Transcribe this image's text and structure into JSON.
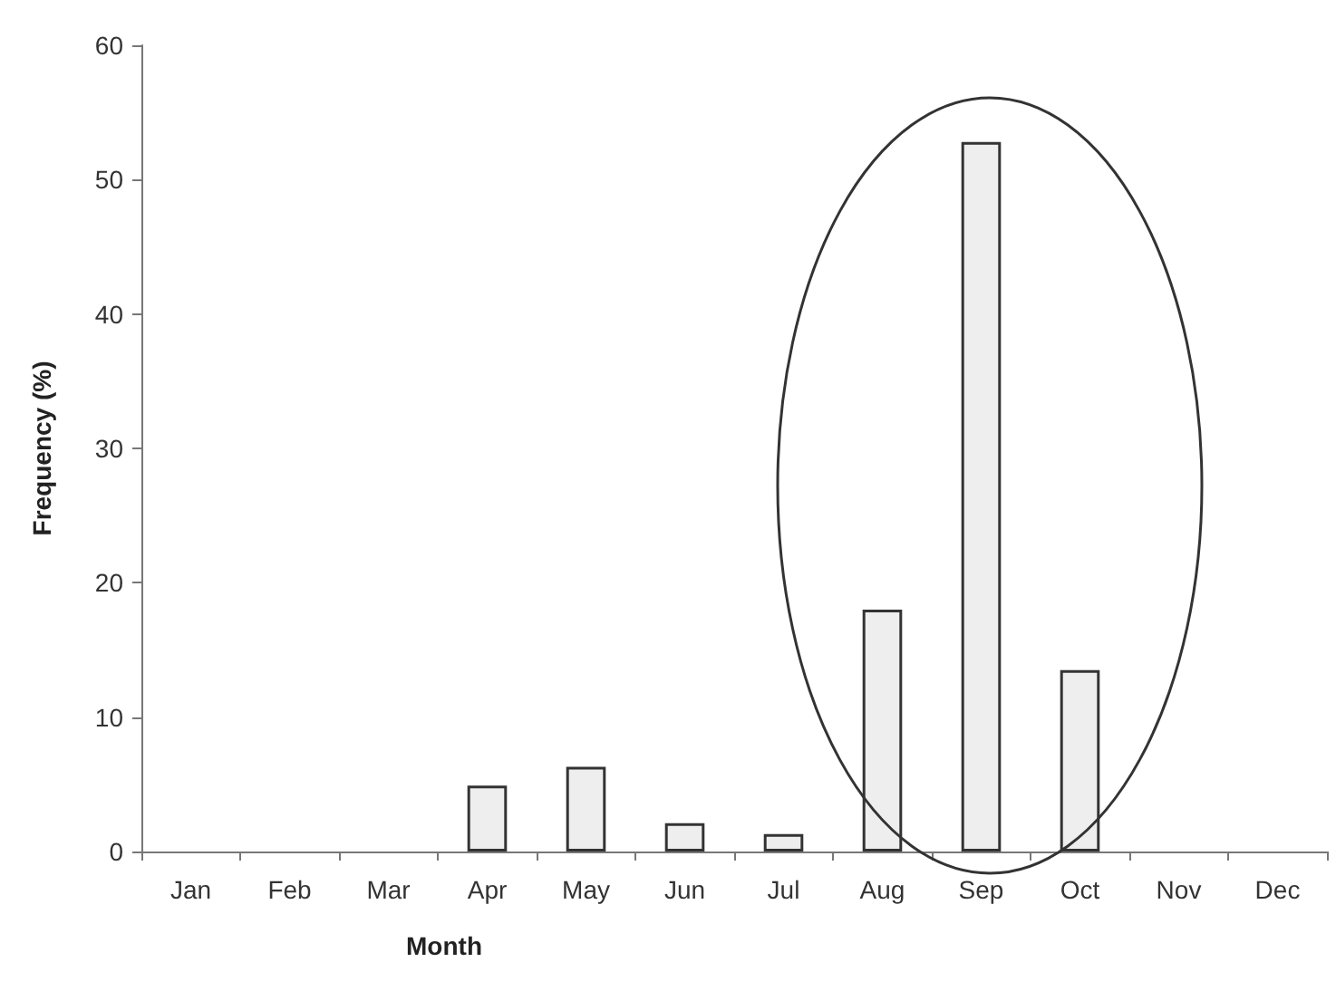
{
  "chart_data": {
    "type": "bar",
    "xlabel": "Month",
    "ylabel": "Frequency (%)",
    "categories": [
      "Jan",
      "Feb",
      "Mar",
      "Apr",
      "May",
      "Jun",
      "Jul",
      "Aug",
      "Sep",
      "Oct",
      "Nov",
      "Dec"
    ],
    "values": [
      0,
      0,
      0,
      4.9,
      6.3,
      2.1,
      1.3,
      18.0,
      52.8,
      13.5,
      0,
      0
    ],
    "color": "#eeeeee",
    "ylim": [
      0,
      60
    ],
    "yticks": [
      0,
      10,
      20,
      30,
      40,
      50,
      60
    ],
    "grid": false
  }
}
